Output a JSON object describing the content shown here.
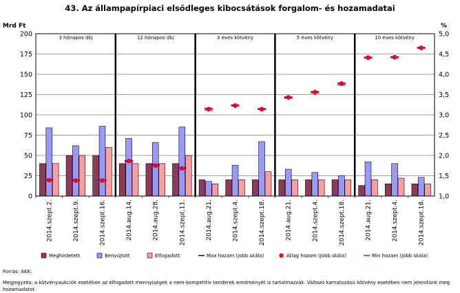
{
  "chart_data": {
    "type": "bar",
    "title": "43. Az állampapírpiaci elsődleges kibocsátások forgalom- és hozamadatai",
    "y_left_label": "Mrd Ft",
    "y_right_label": "%",
    "y_left_range": [
      0,
      200
    ],
    "y_left_ticks": [
      "0",
      "25",
      "50",
      "75",
      "100",
      "125",
      "150",
      "175",
      "200"
    ],
    "y_right_range": [
      1.0,
      5.0
    ],
    "y_right_ticks": [
      "1,0",
      "1,5",
      "2,0",
      "2,5",
      "3,0",
      "3,5",
      "4,0",
      "4,5",
      "5,0"
    ],
    "grid": true,
    "groups": [
      {
        "name": "3 hónapos dkj",
        "categories": [
          "2014.szept.2.",
          "2014.szept.9.",
          "2014.szept.16."
        ]
      },
      {
        "name": "12 hónapos dkj",
        "categories": [
          "2014.aug.14.",
          "2014.aug.28.",
          "2014.szept.11."
        ]
      },
      {
        "name": "3 éves kötvény",
        "categories": [
          "2014.aug.21.",
          "2014.szept.4.",
          "2014.szept.18."
        ]
      },
      {
        "name": "5 éves kötvény",
        "categories": [
          "2014.aug.21.",
          "2014.szept.4.",
          "2014.szept.18."
        ]
      },
      {
        "name": "10 éves kötvény",
        "categories": [
          "2014.aug.21.",
          "2014.szept.4.",
          "2014.szept.18."
        ]
      }
    ],
    "bar_series": [
      {
        "name": "Meghirdetett",
        "color": "#8e3a59",
        "values": [
          40,
          50,
          50,
          40,
          40,
          40,
          20,
          20,
          20,
          20,
          20,
          20,
          13,
          15,
          15
        ]
      },
      {
        "name": "Benyújtott",
        "color": "#9999ff",
        "values": [
          84,
          62,
          86,
          71,
          66,
          85,
          18,
          38,
          67,
          33,
          29,
          25,
          42,
          40,
          23
        ]
      },
      {
        "name": "Elfogadott",
        "color": "#ff9e9e",
        "values": [
          40,
          50,
          60,
          40,
          40,
          50,
          15,
          20,
          30,
          20,
          20,
          20,
          20,
          22,
          15
        ]
      }
    ],
    "yield_series": [
      {
        "name": "Max hozam (jobb skála)",
        "color": "#0000cc",
        "axis": "right",
        "values": [
          1.4,
          1.39,
          1.39,
          1.87,
          1.77,
          1.69,
          3.16,
          3.24,
          3.15,
          3.44,
          3.57,
          3.78,
          4.42,
          4.43,
          4.66
        ]
      },
      {
        "name": "Átlag hozam (jobb skála)",
        "color": "#ff0000",
        "axis": "right",
        "values": [
          1.39,
          1.38,
          1.38,
          1.86,
          1.75,
          1.68,
          3.14,
          3.23,
          3.14,
          3.43,
          3.56,
          3.77,
          4.41,
          4.42,
          4.65
        ]
      },
      {
        "name": "Min hozam (jobb skála)",
        "color": "#cc00cc",
        "axis": "right",
        "values": [
          1.38,
          1.37,
          1.37,
          1.84,
          1.73,
          1.66,
          3.12,
          3.22,
          3.13,
          3.41,
          3.54,
          3.74,
          4.4,
          4.41,
          4.64
        ]
      }
    ]
  },
  "source": "Forrás: ÁKK.",
  "footnote": "Megjegyzés: a kötvényaukciók esetében az elfogadott mennyiségek a nem-kompetitív tenderek eredményét is tartalmazzák. Változó kamatozású kötvény esetében nem jelenítünk meg hozamadatot."
}
